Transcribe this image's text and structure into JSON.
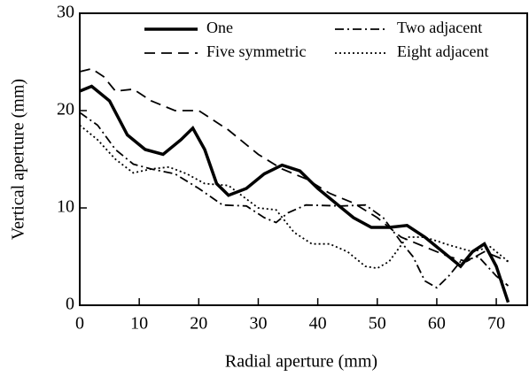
{
  "chart_data": {
    "type": "line",
    "xlabel": "Radial aperture (mm)",
    "ylabel": "Vertical aperture (mm)",
    "xlim": [
      0,
      75.2
    ],
    "ylim": [
      0,
      30
    ],
    "xticks": [
      0,
      10,
      20,
      30,
      40,
      50,
      60,
      70
    ],
    "yticks": [
      0,
      10,
      20,
      30
    ],
    "legend": "top",
    "series": [
      {
        "name": "One",
        "color": "#000000",
        "style": "solid",
        "x": [
          0,
          2,
          5,
          8,
          11,
          14,
          17,
          19,
          21,
          23,
          25,
          28,
          31,
          34,
          37,
          40,
          43,
          46,
          49,
          52,
          55,
          58,
          61,
          64,
          66,
          68,
          70,
          72
        ],
        "values": [
          22,
          22.5,
          21,
          17.5,
          16,
          15.5,
          17,
          18.2,
          16,
          12.5,
          11.3,
          12,
          13.5,
          14.4,
          13.8,
          12,
          10.5,
          9,
          8,
          8,
          8.2,
          7,
          5.5,
          4,
          5.5,
          6.3,
          4,
          0.3
        ]
      },
      {
        "name": "Five symmetric",
        "color": "#000000",
        "style": "dashed",
        "x": [
          0,
          2,
          4,
          6,
          9,
          12,
          16,
          20,
          25,
          30,
          34,
          38,
          42,
          46,
          50,
          54,
          58,
          62,
          65,
          68,
          70,
          72
        ],
        "values": [
          24,
          24.3,
          23.5,
          22,
          22.2,
          21,
          20,
          20,
          18,
          15.5,
          14,
          13,
          11.5,
          10.5,
          9,
          7,
          6,
          5,
          4.5,
          5.5,
          5,
          4.5
        ]
      },
      {
        "name": "Two adjacent",
        "color": "#000000",
        "style": "dashdot",
        "x": [
          0,
          3,
          6,
          9,
          12,
          16,
          20,
          24,
          28,
          31,
          33,
          35,
          38,
          44,
          48,
          51,
          54,
          56,
          58,
          60,
          62,
          64,
          67,
          70,
          72
        ],
        "values": [
          19.8,
          18.5,
          16,
          14.5,
          14,
          13.5,
          12,
          10.3,
          10.2,
          9,
          8.5,
          9.5,
          10.3,
          10.2,
          10.3,
          9,
          6.5,
          5,
          2.5,
          1.8,
          3,
          4.5,
          5,
          3,
          2
        ]
      },
      {
        "name": "Eight adjacent",
        "color": "#000000",
        "style": "dotted",
        "x": [
          0,
          3,
          6,
          9,
          12,
          15,
          18,
          21,
          25,
          30,
          33,
          36,
          39,
          42,
          45,
          48,
          50,
          52,
          55,
          58,
          62,
          66,
          69,
          72
        ],
        "values": [
          18.5,
          17,
          15,
          13.6,
          14,
          14.2,
          13.5,
          12.5,
          12.3,
          10,
          9.8,
          7.5,
          6.3,
          6.3,
          5.5,
          4,
          3.8,
          4.5,
          7,
          7,
          6.2,
          5.5,
          6,
          4.5
        ]
      }
    ]
  }
}
